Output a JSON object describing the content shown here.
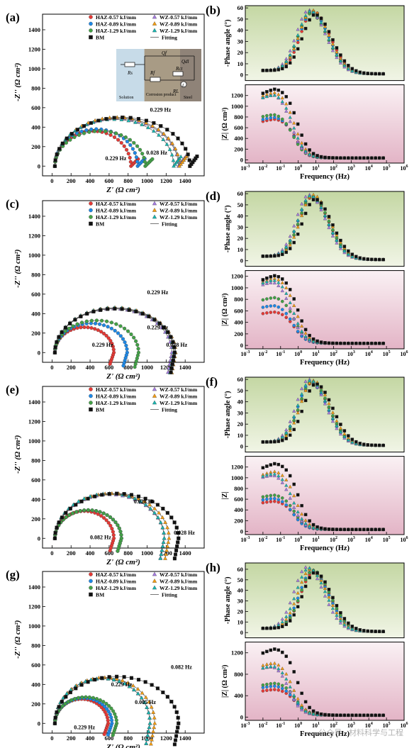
{
  "chart_data": [
    {
      "panel": "(a)",
      "type": "scatter",
      "kind": "nyquist",
      "xlabel": "Z' (Ω cm²)",
      "ylabel": "-Z'' (Ω cm²)",
      "xlim": [
        -100,
        1600
      ],
      "ylim": [
        -100,
        1560
      ],
      "xticks": [
        0,
        200,
        400,
        600,
        800,
        1000,
        1200,
        1400
      ],
      "yticks": [
        0,
        200,
        400,
        600,
        800,
        1000,
        1200,
        1400
      ],
      "series": [
        {
          "name": "HAZ-0.57 kJ/mm",
          "color": "#e53935",
          "marker": "circle",
          "R": 800,
          "peak": 360
        },
        {
          "name": "HAZ-0.89 kJ/mm",
          "color": "#1e88e5",
          "marker": "circle",
          "R": 870,
          "peak": 380
        },
        {
          "name": "HAZ-1.29 kJ/mm",
          "color": "#43a047",
          "marker": "circle",
          "R": 950,
          "peak": 360
        },
        {
          "name": "WZ-0.57 kJ/mm",
          "color": "#a57be0",
          "marker": "triangle",
          "R": 1300,
          "peak": 490
        },
        {
          "name": "WZ-0.89 kJ/mm",
          "color": "#f39c12",
          "marker": "triangle",
          "R": 1310,
          "peak": 500
        },
        {
          "name": "WZ-1.29 kJ/mm",
          "color": "#19b5b0",
          "marker": "triangle",
          "R": 1250,
          "peak": 480
        },
        {
          "name": "BM",
          "color": "#111111",
          "marker": "square",
          "R": 1420,
          "peak": 500
        }
      ],
      "fitting_label": "Fitting",
      "annotations": [
        "0.229 Hz",
        "0.229 Hz",
        "0.028 Hz"
      ],
      "inset": {
        "labels": [
          "Rs",
          "Qf",
          "Rf",
          "Qdl",
          "Rct",
          "RL",
          "L",
          "Solution",
          "Corrosion product",
          "Steel"
        ]
      }
    },
    {
      "panel": "(c)",
      "type": "scatter",
      "kind": "nyquist",
      "xlabel": "Z' (Ω cm²)",
      "ylabel": "-Z'' (Ω cm²)",
      "xlim": [
        -100,
        1600
      ],
      "ylim": [
        -100,
        1560
      ],
      "series": [
        {
          "name": "HAZ-0.57 kJ/mm",
          "color": "#e53935",
          "marker": "circle",
          "R": 620,
          "peak": 260
        },
        {
          "name": "HAZ-0.89 kJ/mm",
          "color": "#1e88e5",
          "marker": "circle",
          "R": 760,
          "peak": 300
        },
        {
          "name": "HAZ-1.29 kJ/mm",
          "color": "#43a047",
          "marker": "circle",
          "R": 880,
          "peak": 330
        },
        {
          "name": "WZ-0.57 kJ/mm",
          "color": "#a57be0",
          "marker": "triangle",
          "R": 1230,
          "peak": 450
        },
        {
          "name": "WZ-0.89 kJ/mm",
          "color": "#f39c12",
          "marker": "triangle",
          "R": 1270,
          "peak": 460
        },
        {
          "name": "WZ-1.29 kJ/mm",
          "color": "#19b5b0",
          "marker": "triangle",
          "R": 1250,
          "peak": 460
        },
        {
          "name": "BM",
          "color": "#111111",
          "marker": "square",
          "R": 1260,
          "peak": 450
        }
      ],
      "fitting_label": "Fitting",
      "annotations": [
        "0.229 Hz",
        "0.229 Hz",
        "0.229 Hz",
        "0.028 Hz"
      ]
    },
    {
      "panel": "(e)",
      "type": "scatter",
      "kind": "nyquist",
      "xlabel": "Z' (Ω cm²)",
      "ylabel": "-Z'' (Ω cm²)",
      "xlim": [
        -100,
        1600
      ],
      "ylim": [
        -100,
        1560
      ],
      "series": [
        {
          "name": "HAZ-0.57 kJ/mm",
          "color": "#e53935",
          "marker": "circle",
          "R": 620,
          "peak": 280
        },
        {
          "name": "HAZ-0.89 kJ/mm",
          "color": "#1e88e5",
          "marker": "circle",
          "R": 700,
          "peak": 290
        },
        {
          "name": "HAZ-1.29 kJ/mm",
          "color": "#43a047",
          "marker": "circle",
          "R": 700,
          "peak": 290
        },
        {
          "name": "WZ-0.57 kJ/mm",
          "color": "#a57be0",
          "marker": "triangle",
          "R": 1150,
          "peak": 450
        },
        {
          "name": "WZ-0.89 kJ/mm",
          "color": "#f39c12",
          "marker": "triangle",
          "R": 1200,
          "peak": 460
        },
        {
          "name": "WZ-1.29 kJ/mm",
          "color": "#19b5b0",
          "marker": "triangle",
          "R": 1150,
          "peak": 460
        },
        {
          "name": "BM",
          "color": "#111111",
          "marker": "square",
          "R": 1300,
          "peak": 460
        }
      ],
      "fitting_label": "Fitting",
      "annotations": [
        "0.028 Hz",
        "0.082 Hz",
        "0.028 Hz"
      ]
    },
    {
      "panel": "(g)",
      "type": "scatter",
      "kind": "nyquist",
      "xlabel": "Z' (Ω cm²)",
      "ylabel": "-Z'' (Ω cm²)",
      "xlim": [
        -100,
        1600
      ],
      "ylim": [
        -100,
        1560
      ],
      "series": [
        {
          "name": "HAZ-0.57 kJ/mm",
          "color": "#e53935",
          "marker": "circle",
          "R": 560,
          "peak": 250
        },
        {
          "name": "HAZ-0.89 kJ/mm",
          "color": "#1e88e5",
          "marker": "circle",
          "R": 600,
          "peak": 260
        },
        {
          "name": "HAZ-1.29 kJ/mm",
          "color": "#43a047",
          "marker": "circle",
          "R": 650,
          "peak": 270
        },
        {
          "name": "WZ-0.57 kJ/mm",
          "color": "#a57be0",
          "marker": "triangle",
          "R": 1000,
          "peak": 460
        },
        {
          "name": "WZ-0.89 kJ/mm",
          "color": "#f39c12",
          "marker": "triangle",
          "R": 1050,
          "peak": 470
        },
        {
          "name": "WZ-1.29 kJ/mm",
          "color": "#19b5b0",
          "marker": "triangle",
          "R": 1000,
          "peak": 460
        },
        {
          "name": "BM",
          "color": "#111111",
          "marker": "square",
          "R": 1300,
          "peak": 480
        }
      ],
      "fitting_label": "Fitting",
      "annotations": [
        "0.229 Hz",
        "0.229 Hz",
        "0.005 Hz",
        "0.082 Hz"
      ]
    },
    {
      "panel": "(b)",
      "type": "scatter",
      "kind": "bode",
      "xlabel": "Frequency (Hz)",
      "xscale": "log",
      "xlim": [
        -3,
        6
      ],
      "top": {
        "ylabel": "-Phase angle (°)",
        "ylim": [
          -5,
          62
        ],
        "yticks": [
          0,
          10,
          20,
          30,
          40,
          50,
          60
        ]
      },
      "bottom": {
        "ylabel": "|Z| (Ω cm²)",
        "ylim": [
          -60,
          1400
        ],
        "yticks": [
          0,
          200,
          400,
          600,
          800,
          1000,
          1200
        ]
      },
      "series": [
        {
          "name": "HAZ-0.57 kJ/mm",
          "color": "#e53935",
          "marker": "circle",
          "zmax": 780,
          "pmax": 57,
          "fpk": 7
        },
        {
          "name": "HAZ-0.89 kJ/mm",
          "color": "#1e88e5",
          "marker": "circle",
          "zmax": 820,
          "pmax": 56,
          "fpk": 6
        },
        {
          "name": "HAZ-1.29 kJ/mm",
          "color": "#43a047",
          "marker": "circle",
          "zmax": 880,
          "pmax": 55,
          "fpk": 5
        },
        {
          "name": "WZ-0.57 kJ/mm",
          "color": "#a57be0",
          "marker": "triangle",
          "zmax": 1280,
          "pmax": 58,
          "fpk": 4
        },
        {
          "name": "WZ-0.89 kJ/mm",
          "color": "#f39c12",
          "marker": "triangle",
          "zmax": 1300,
          "pmax": 58,
          "fpk": 6
        },
        {
          "name": "WZ-1.29 kJ/mm",
          "color": "#19b5b0",
          "marker": "triangle",
          "zmax": 1260,
          "pmax": 57,
          "fpk": 5
        },
        {
          "name": "BM",
          "color": "#111111",
          "marker": "square",
          "zmax": 1350,
          "pmax": 54,
          "fpk": 9
        }
      ]
    },
    {
      "panel": "(d)",
      "type": "scatter",
      "kind": "bode",
      "xlabel": "Frequency (Hz)",
      "xscale": "log",
      "xlim": [
        -3,
        6
      ],
      "top": {
        "ylabel": "-Phase angle (°)",
        "ylim": [
          -5,
          62
        ],
        "yticks": [
          0,
          10,
          20,
          30,
          40,
          50,
          60
        ]
      },
      "bottom": {
        "ylabel": "|Z| (Ω cm²)",
        "ylim": [
          -60,
          1300
        ],
        "yticks": [
          0,
          200,
          400,
          600,
          800,
          1000,
          1200
        ]
      },
      "series": [
        {
          "name": "HAZ-0.57 kJ/mm",
          "color": "#e53935",
          "marker": "circle",
          "zmax": 600,
          "pmax": 57,
          "fpk": 6
        },
        {
          "name": "HAZ-0.89 kJ/mm",
          "color": "#1e88e5",
          "marker": "circle",
          "zmax": 720,
          "pmax": 57,
          "fpk": 5
        },
        {
          "name": "HAZ-1.29 kJ/mm",
          "color": "#43a047",
          "marker": "circle",
          "zmax": 860,
          "pmax": 58,
          "fpk": 6
        },
        {
          "name": "WZ-0.57 kJ/mm",
          "color": "#a57be0",
          "marker": "triangle",
          "zmax": 1150,
          "pmax": 59,
          "fpk": 4
        },
        {
          "name": "WZ-0.89 kJ/mm",
          "color": "#f39c12",
          "marker": "triangle",
          "zmax": 1200,
          "pmax": 59,
          "fpk": 7
        },
        {
          "name": "WZ-1.29 kJ/mm",
          "color": "#19b5b0",
          "marker": "triangle",
          "zmax": 1180,
          "pmax": 58,
          "fpk": 5
        },
        {
          "name": "BM",
          "color": "#111111",
          "marker": "square",
          "zmax": 1240,
          "pmax": 55,
          "fpk": 9
        }
      ]
    },
    {
      "panel": "(f)",
      "type": "scatter",
      "kind": "bode",
      "xlabel": "Frequency (Hz)",
      "xscale": "log",
      "xlim": [
        -3,
        6
      ],
      "top": {
        "ylabel": "-Phase angle (°)",
        "ylim": [
          -5,
          62
        ],
        "yticks": [
          0,
          10,
          20,
          30,
          40,
          50,
          60
        ]
      },
      "bottom": {
        "ylabel": "|Z|",
        "ylim": [
          -60,
          1400
        ],
        "yticks": [
          0,
          200,
          400,
          600,
          800,
          1000,
          1200
        ]
      },
      "series": [
        {
          "name": "HAZ-0.57 kJ/mm",
          "color": "#e53935",
          "marker": "circle",
          "zmax": 580,
          "pmax": 57,
          "fpk": 6
        },
        {
          "name": "HAZ-0.89 kJ/mm",
          "color": "#1e88e5",
          "marker": "circle",
          "zmax": 640,
          "pmax": 57,
          "fpk": 5
        },
        {
          "name": "HAZ-1.29 kJ/mm",
          "color": "#43a047",
          "marker": "circle",
          "zmax": 700,
          "pmax": 58,
          "fpk": 6
        },
        {
          "name": "WZ-0.57 kJ/mm",
          "color": "#a57be0",
          "marker": "triangle",
          "zmax": 1100,
          "pmax": 60,
          "fpk": 4
        },
        {
          "name": "WZ-0.89 kJ/mm",
          "color": "#f39c12",
          "marker": "triangle",
          "zmax": 1150,
          "pmax": 59,
          "fpk": 7
        },
        {
          "name": "WZ-1.29 kJ/mm",
          "color": "#19b5b0",
          "marker": "triangle",
          "zmax": 1120,
          "pmax": 59,
          "fpk": 5
        },
        {
          "name": "BM",
          "color": "#111111",
          "marker": "square",
          "zmax": 1290,
          "pmax": 56,
          "fpk": 10
        }
      ]
    },
    {
      "panel": "(h)",
      "type": "scatter",
      "kind": "bode",
      "xlabel": "Frequency (Hz)",
      "xscale": "log",
      "xlim": [
        -3,
        6
      ],
      "top": {
        "ylabel": "-Phase angle (°)",
        "ylim": [
          -5,
          66
        ],
        "yticks": [
          0,
          10,
          20,
          30,
          40,
          50,
          60
        ]
      },
      "bottom": {
        "ylabel": "|Z| (Ω cm²)",
        "ylim": [
          -60,
          1400
        ],
        "yticks": [
          0,
          400,
          800,
          1200
        ]
      },
      "series": [
        {
          "name": "HAZ-0.57 kJ/mm",
          "color": "#e53935",
          "marker": "circle",
          "zmax": 530,
          "pmax": 57,
          "fpk": 7
        },
        {
          "name": "HAZ-0.89 kJ/mm",
          "color": "#1e88e5",
          "marker": "circle",
          "zmax": 600,
          "pmax": 58,
          "fpk": 6
        },
        {
          "name": "HAZ-1.29 kJ/mm",
          "color": "#43a047",
          "marker": "circle",
          "zmax": 650,
          "pmax": 59,
          "fpk": 7
        },
        {
          "name": "WZ-0.57 kJ/mm",
          "color": "#a57be0",
          "marker": "triangle",
          "zmax": 1000,
          "pmax": 62,
          "fpk": 3
        },
        {
          "name": "WZ-0.89 kJ/mm",
          "color": "#f39c12",
          "marker": "triangle",
          "zmax": 1050,
          "pmax": 60,
          "fpk": 5
        },
        {
          "name": "WZ-1.29 kJ/mm",
          "color": "#19b5b0",
          "marker": "triangle",
          "zmax": 1000,
          "pmax": 61,
          "fpk": 4
        },
        {
          "name": "BM",
          "color": "#111111",
          "marker": "square",
          "zmax": 1300,
          "pmax": 57,
          "fpk": 9
        }
      ]
    }
  ],
  "watermark": "公众号 · 材料科学与工程"
}
